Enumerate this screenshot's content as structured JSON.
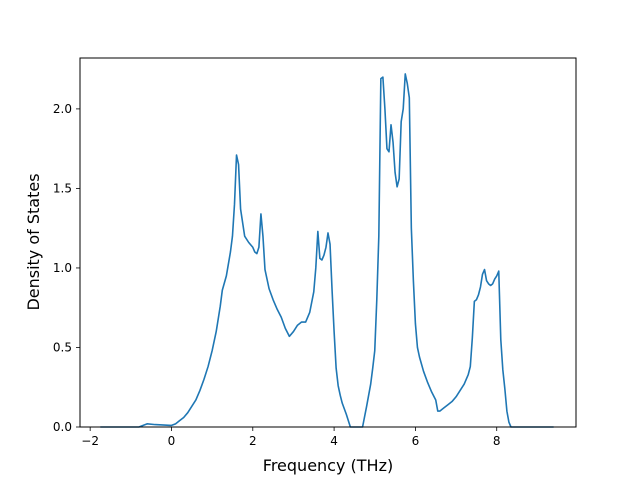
{
  "chart_data": {
    "type": "line",
    "title": "",
    "xlabel": "Frequency (THz)",
    "ylabel": "Density of States",
    "xlim": [
      -2.25,
      9.95
    ],
    "ylim": [
      0,
      2.32
    ],
    "xticks": [
      -2,
      0,
      2,
      4,
      6,
      8
    ],
    "xtick_labels": [
      "−2",
      "0",
      "2",
      "4",
      "6",
      "8"
    ],
    "yticks": [
      0,
      0.5,
      1.0,
      1.5,
      2.0
    ],
    "ytick_labels": [
      "0.0",
      "0.5",
      "1.0",
      "1.5",
      "2.0"
    ],
    "grid": false,
    "line_color": "#1f77b4",
    "series": [
      {
        "x": [
          -1.75,
          -1.2,
          -0.8,
          -0.6,
          -0.4,
          0.0,
          0.1,
          0.2,
          0.3,
          0.4,
          0.5,
          0.6,
          0.7,
          0.8,
          0.9,
          1.0,
          1.1,
          1.2,
          1.25,
          1.35,
          1.45,
          1.5,
          1.55,
          1.6,
          1.65,
          1.7,
          1.8,
          1.9,
          2.0,
          2.05,
          2.1,
          2.15,
          2.2,
          2.25,
          2.3,
          2.4,
          2.5,
          2.6,
          2.7,
          2.8,
          2.9,
          3.0,
          3.1,
          3.2,
          3.3,
          3.4,
          3.5,
          3.55,
          3.6,
          3.65,
          3.7,
          3.75,
          3.8,
          3.85,
          3.9,
          3.95,
          4.0,
          4.05,
          4.1,
          4.15,
          4.2,
          4.3,
          4.4,
          4.5,
          4.7,
          4.8,
          4.9,
          4.95,
          5.0,
          5.05,
          5.1,
          5.15,
          5.2,
          5.25,
          5.3,
          5.35,
          5.4,
          5.45,
          5.5,
          5.55,
          5.6,
          5.65,
          5.7,
          5.75,
          5.8,
          5.85,
          5.9,
          5.95,
          6.0,
          6.05,
          6.1,
          6.2,
          6.3,
          6.4,
          6.5,
          6.55,
          6.6,
          6.7,
          6.8,
          6.9,
          7.0,
          7.1,
          7.2,
          7.3,
          7.35,
          7.4,
          7.45,
          7.5,
          7.55,
          7.6,
          7.65,
          7.7,
          7.75,
          7.8,
          7.85,
          7.9,
          7.95,
          8.0,
          8.05,
          8.1,
          8.15,
          8.2,
          8.25,
          8.3,
          8.35,
          8.4,
          8.45,
          8.5,
          8.6,
          8.8,
          9.0,
          9.4
        ],
        "y": [
          0.0,
          0.0,
          0.0,
          0.02,
          0.015,
          0.01,
          0.02,
          0.04,
          0.06,
          0.09,
          0.13,
          0.17,
          0.23,
          0.3,
          0.38,
          0.48,
          0.6,
          0.76,
          0.86,
          0.95,
          1.1,
          1.2,
          1.4,
          1.71,
          1.65,
          1.37,
          1.2,
          1.16,
          1.13,
          1.1,
          1.09,
          1.13,
          1.34,
          1.2,
          0.99,
          0.87,
          0.8,
          0.74,
          0.69,
          0.62,
          0.57,
          0.6,
          0.64,
          0.66,
          0.66,
          0.72,
          0.85,
          1.0,
          1.23,
          1.06,
          1.05,
          1.08,
          1.13,
          1.22,
          1.15,
          0.86,
          0.6,
          0.37,
          0.26,
          0.2,
          0.15,
          0.08,
          0.0,
          0.0,
          0.0,
          0.13,
          0.27,
          0.37,
          0.48,
          0.8,
          1.2,
          2.19,
          2.2,
          2.0,
          1.75,
          1.73,
          1.9,
          1.79,
          1.6,
          1.51,
          1.56,
          1.92,
          2.0,
          2.22,
          2.16,
          2.07,
          1.25,
          0.92,
          0.65,
          0.5,
          0.44,
          0.35,
          0.28,
          0.22,
          0.17,
          0.1,
          0.1,
          0.12,
          0.14,
          0.16,
          0.19,
          0.23,
          0.27,
          0.33,
          0.38,
          0.56,
          0.79,
          0.8,
          0.83,
          0.88,
          0.96,
          0.99,
          0.92,
          0.9,
          0.89,
          0.9,
          0.93,
          0.95,
          0.98,
          0.55,
          0.36,
          0.24,
          0.1,
          0.03,
          0.0,
          0.0,
          0.0,
          0.0,
          0.0,
          0.0,
          0.0,
          0.0
        ]
      }
    ]
  }
}
